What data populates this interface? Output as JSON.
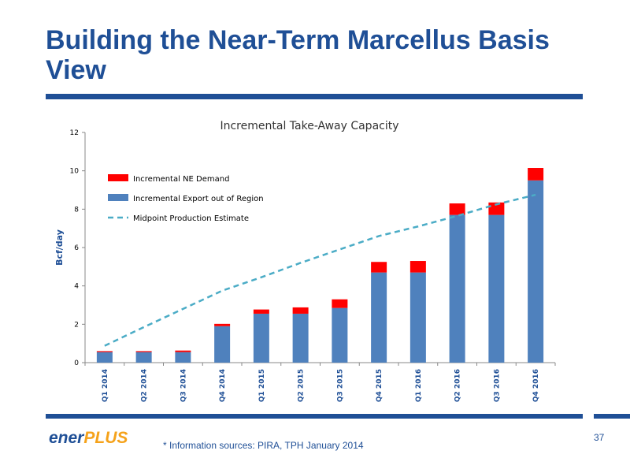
{
  "slide": {
    "title": "Building the Near-Term Marcellus Basis View",
    "footnote": "* Information sources: PIRA, TPH January 2014",
    "page_number": "37",
    "logo": {
      "part1": "ener",
      "part2": "PLUS"
    },
    "colors": {
      "title": "#1f4f96",
      "logo_accent": "#f5a21a"
    }
  },
  "chart_data": {
    "type": "bar",
    "stacked": true,
    "title": "Incremental Take-Away Capacity",
    "ylabel": "Bcf/day",
    "xlabel": "",
    "ylim": [
      0,
      12
    ],
    "yticks": [
      0,
      2,
      4,
      6,
      8,
      10,
      12
    ],
    "grid": false,
    "legend_position": "top-left",
    "categories": [
      "Q1 2014",
      "Q2 2014",
      "Q3 2014",
      "Q4 2014",
      "Q1 2015",
      "Q2 2015",
      "Q3 2015",
      "Q4 2015",
      "Q1 2016",
      "Q2 2016",
      "Q3 2016",
      "Q4 2016"
    ],
    "series": [
      {
        "name": "Incremental Export out of Region",
        "kind": "bar",
        "color": "#4f81bd",
        "values": [
          0.55,
          0.55,
          0.55,
          1.9,
          2.55,
          2.55,
          2.85,
          4.7,
          4.7,
          7.7,
          7.7,
          9.5
        ]
      },
      {
        "name": "Incremental NE Demand",
        "kind": "bar",
        "color": "#ff0000",
        "values": [
          0.05,
          0.05,
          0.08,
          0.12,
          0.22,
          0.33,
          0.45,
          0.55,
          0.6,
          0.6,
          0.65,
          0.65
        ]
      },
      {
        "name": "Midpoint Production Estimate",
        "kind": "line",
        "style": "dashed",
        "color": "#4bacc6",
        "values": [
          0.88,
          1.85,
          2.8,
          3.75,
          4.45,
          5.2,
          5.9,
          6.6,
          7.1,
          7.65,
          8.25,
          8.75
        ]
      }
    ],
    "legend_order": [
      "Incremental NE Demand",
      "Incremental Export out of Region",
      "Midpoint Production Estimate"
    ]
  }
}
